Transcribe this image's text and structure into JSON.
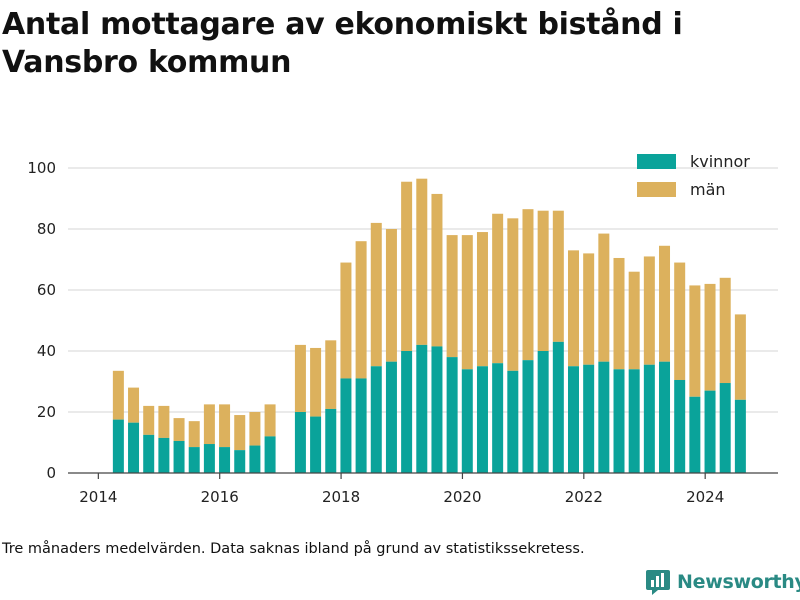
{
  "title": "Antal mottagare av ekonomiskt bistånd i Vansbro kommun",
  "note": "Tre månaders medelvärden. Data saknas ibland på grund av statistikssekretess.",
  "brand": "Newsworthy",
  "colors": {
    "kvinnor": "#0aa39a",
    "man": "#dcb15d",
    "grid": "#dddddd",
    "axis": "#444444",
    "brand": "#2a8a84"
  },
  "chart_data": {
    "type": "bar",
    "stacked": true,
    "ylim": [
      0,
      100
    ],
    "yticks": [
      0,
      20,
      40,
      60,
      80,
      100
    ],
    "xticks": [
      "2014",
      "2016",
      "2018",
      "2020",
      "2022",
      "2024"
    ],
    "xlim": [
      2013.5,
      2025.2
    ],
    "grid": true,
    "legend_position": "top-right",
    "series": [
      {
        "name": "kvinnor",
        "color": "#0aa39a"
      },
      {
        "name": "män",
        "color": "#dcb15d"
      }
    ],
    "x": [
      2014.33,
      2014.58,
      2014.83,
      2015.08,
      2015.33,
      2015.58,
      2015.83,
      2016.08,
      2016.33,
      2016.58,
      2016.83,
      2017.33,
      2017.58,
      2017.83,
      2018.08,
      2018.33,
      2018.58,
      2018.83,
      2019.08,
      2019.33,
      2019.58,
      2019.83,
      2020.08,
      2020.33,
      2020.58,
      2020.83,
      2021.08,
      2021.33,
      2021.58,
      2021.83,
      2022.08,
      2022.33,
      2022.58,
      2022.83,
      2023.08,
      2023.33,
      2023.58,
      2023.83,
      2024.08,
      2024.33,
      2024.58
    ],
    "kvinnor": [
      17.5,
      16.5,
      12.5,
      11.5,
      10.5,
      8.5,
      9.5,
      8.5,
      7.5,
      9.0,
      12.0,
      20.0,
      18.5,
      21.0,
      31.0,
      31.0,
      35.0,
      36.5,
      40.0,
      42.0,
      41.5,
      38.0,
      34.0,
      35.0,
      36.0,
      33.5,
      37.0,
      40.0,
      43.0,
      35.0,
      35.5,
      36.5,
      34.0,
      34.0,
      35.5,
      36.5,
      30.5,
      25.0,
      27.0,
      29.5,
      24.0
    ],
    "total": [
      33.5,
      28.0,
      22.0,
      22.0,
      18.0,
      17.0,
      22.5,
      22.5,
      19.0,
      20.0,
      22.5,
      42.0,
      41.0,
      43.5,
      69.0,
      76.0,
      82.0,
      80.0,
      95.5,
      96.5,
      91.5,
      78.0,
      78.0,
      79.0,
      85.0,
      83.5,
      86.5,
      86.0,
      86.0,
      73.0,
      72.0,
      78.5,
      70.5,
      66.0,
      71.0,
      74.5,
      69.0,
      61.5,
      62.0,
      64.0,
      52.0
    ]
  }
}
